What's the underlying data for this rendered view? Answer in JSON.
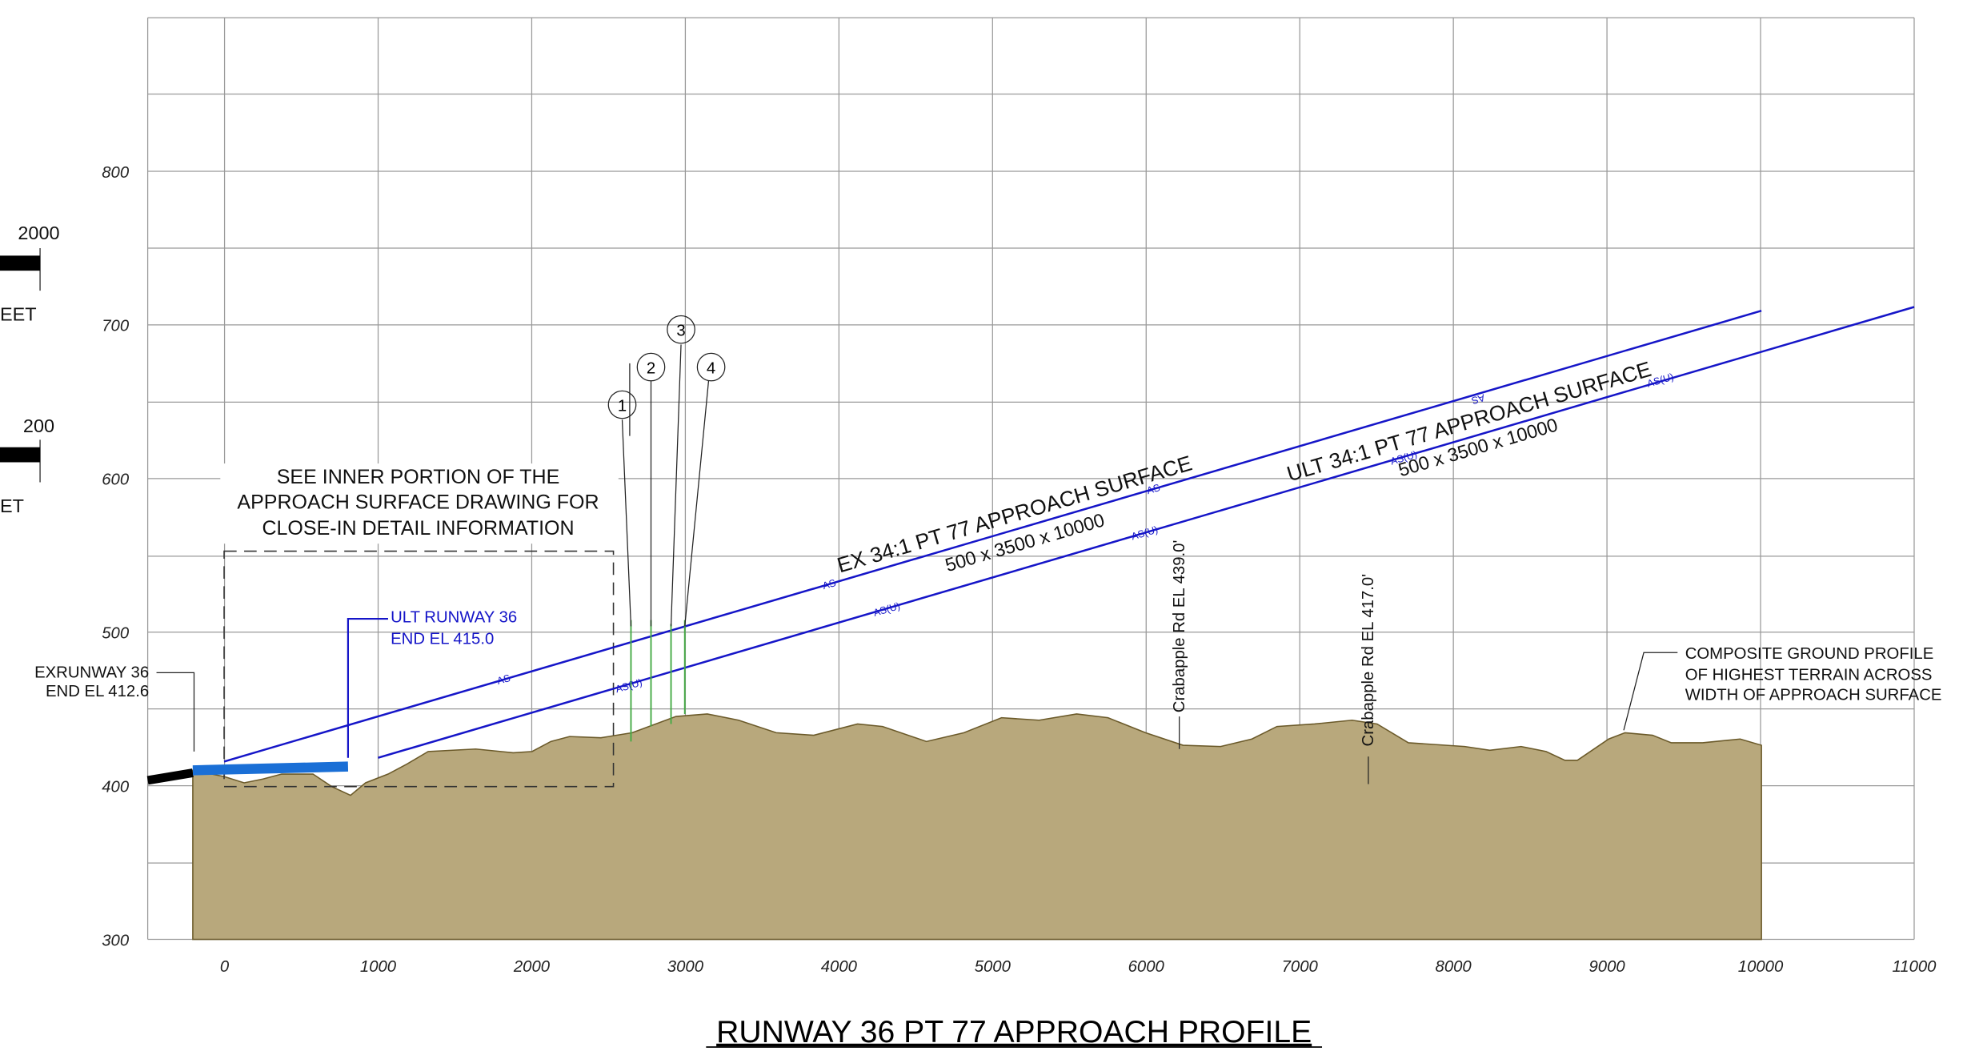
{
  "axes": {
    "xlim": [
      -500,
      11000
    ],
    "ylim": [
      300,
      900
    ],
    "xticks": [
      0,
      1000,
      2000,
      3000,
      4000,
      5000,
      6000,
      7000,
      8000,
      9000,
      10000,
      11000
    ],
    "yticks": [
      300,
      400,
      500,
      600,
      700,
      800
    ]
  },
  "title": "RUNWAY 36 PT 77 APPROACH PROFILE",
  "note": [
    "SEE INNER PORTION OF THE",
    "APPROACH SURFACE DRAWING FOR",
    "CLOSE-IN DETAIL INFORMATION"
  ],
  "ex_runway_end": [
    "EXRUNWAY 36",
    "END EL 412.6"
  ],
  "ult_runway_end": [
    "ULT RUNWAY 36",
    "END EL 415.0"
  ],
  "ex_surface": {
    "label": "EX 34:1 PT 77 APPROACH SURFACE",
    "dims": "500 x 3500 x 10000",
    "tag": "AS"
  },
  "ult_surface": {
    "label": "ULT 34:1 PT 77 APPROACH SURFACE",
    "dims": "500 x 3500 x 10000",
    "tag": "AS(U)"
  },
  "crossings": [
    "Crabapple Rd EL 439.0'",
    "Crabapple Rd EL 417.0'"
  ],
  "ground_profile": [
    "COMPOSITE GROUND PROFILE",
    "OF HIGHEST TERRAIN ACROSS",
    "WIDTH OF APPROACH SURFACE"
  ],
  "obstructions": [
    "1",
    "2",
    "3",
    "4"
  ],
  "scale_bars": [
    {
      "label": "2000",
      "unit": "EET"
    },
    {
      "label": "200",
      "unit": "ET"
    }
  ]
}
